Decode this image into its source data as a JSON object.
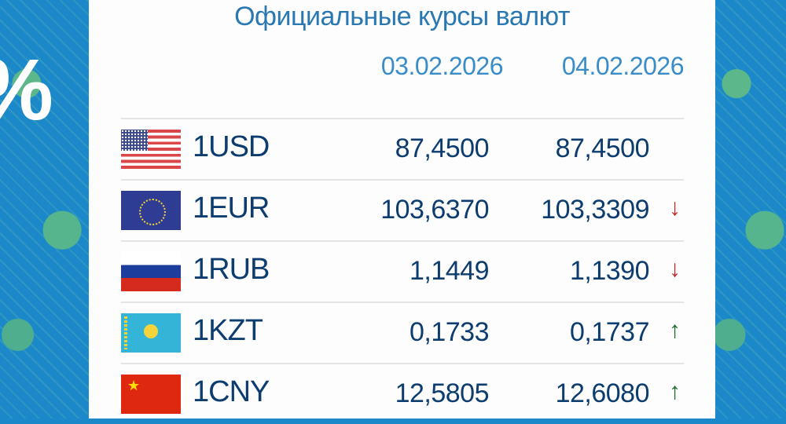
{
  "title": "Официальные курсы валют",
  "dates": [
    "03.02.2026",
    "04.02.2026"
  ],
  "colors": {
    "title": "#2a78b2",
    "value": "#0d3c6e",
    "down": "#c0282a",
    "up": "#1d6b2a"
  },
  "rows": [
    {
      "code": "1USD",
      "flag": "us-flag",
      "prev": "87,4500",
      "curr": "87,4500",
      "trend": "",
      "trend_icon": ""
    },
    {
      "code": "1EUR",
      "flag": "eu-flag",
      "prev": "103,6370",
      "curr": "103,3309",
      "trend": "down",
      "trend_icon": "↓"
    },
    {
      "code": "1RUB",
      "flag": "ru-flag",
      "prev": "1,1449",
      "curr": "1,1390",
      "trend": "down",
      "trend_icon": "↓"
    },
    {
      "code": "1KZT",
      "flag": "kz-flag",
      "prev": "0,1733",
      "curr": "0,1737",
      "trend": "up",
      "trend_icon": "↑"
    },
    {
      "code": "1CNY",
      "flag": "cn-flag",
      "prev": "12,5805",
      "curr": "12,6080",
      "trend": "up",
      "trend_icon": "↑"
    }
  ]
}
